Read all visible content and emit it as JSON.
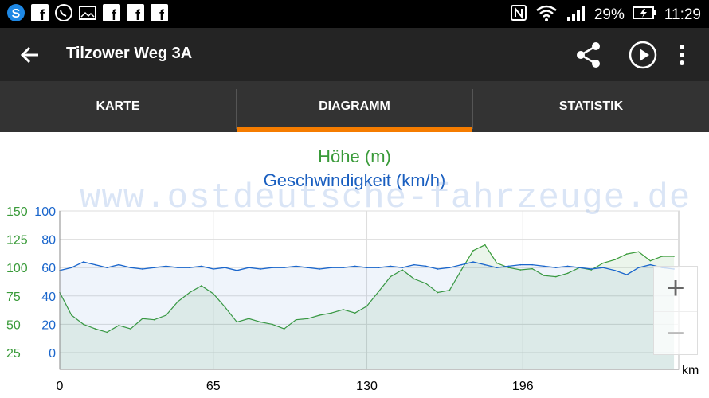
{
  "status_bar": {
    "battery": "29%",
    "time": "11:29",
    "left_icons": [
      "s-app-icon",
      "facebook-icon",
      "whatsapp-icon",
      "image-icon",
      "facebook-icon",
      "facebook-icon",
      "facebook-icon"
    ],
    "right_icons": [
      "nfc-icon",
      "wifi-icon",
      "signal-icon",
      "battery-charging-icon"
    ]
  },
  "app_bar": {
    "title": "Tilzower Weg 3A"
  },
  "tabs": [
    {
      "label": "KARTE",
      "active": false
    },
    {
      "label": "DIAGRAMM",
      "active": true
    },
    {
      "label": "STATISTIK",
      "active": false
    }
  ],
  "accent_color": "#f57c00",
  "chart": {
    "title_height": "Höhe (m)",
    "title_speed": "Geschwindigkeit (km/h)",
    "watermark": "www.ostdeutsche-fahrzeuge.de",
    "zoom_in": "+",
    "zoom_out": "−"
  },
  "chart_data": {
    "type": "line",
    "xlabel": "km",
    "x_ticks": [
      "0",
      "65",
      "130",
      "196"
    ],
    "xlim": [
      0,
      262
    ],
    "left_axis_green_ticks": [
      "150",
      "125",
      "100",
      "75",
      "50",
      "25"
    ],
    "left_axis_blue_ticks": [
      "100",
      "80",
      "60",
      "40",
      "20",
      "0"
    ],
    "ylim_height": [
      25,
      150
    ],
    "ylim_speed": [
      0,
      100
    ],
    "grid": true,
    "series": [
      {
        "name": "Höhe (m)",
        "axis": "height",
        "color": "#3a9b3a",
        "x": [
          0,
          5,
          10,
          15,
          20,
          25,
          30,
          35,
          40,
          45,
          50,
          55,
          60,
          65,
          70,
          75,
          80,
          85,
          90,
          95,
          100,
          105,
          110,
          115,
          120,
          125,
          130,
          135,
          140,
          145,
          150,
          155,
          160,
          165,
          170,
          175,
          180,
          185,
          190,
          195,
          200,
          205,
          210,
          215,
          220,
          225,
          230,
          235,
          240,
          245,
          250,
          255,
          260
        ],
        "values": [
          78,
          58,
          50,
          46,
          43,
          49,
          46,
          55,
          54,
          58,
          70,
          78,
          84,
          77,
          65,
          52,
          55,
          52,
          50,
          46,
          54,
          55,
          58,
          60,
          63,
          60,
          66,
          79,
          92,
          98,
          90,
          86,
          78,
          80,
          98,
          115,
          120,
          104,
          100,
          98,
          99,
          93,
          92,
          95,
          100,
          98,
          104,
          107,
          112,
          114,
          106,
          110,
          110
        ]
      },
      {
        "name": "Geschwindigkeit (km/h)",
        "axis": "speed",
        "color": "#1a66cc",
        "x": [
          0,
          5,
          10,
          15,
          20,
          25,
          30,
          35,
          40,
          45,
          50,
          55,
          60,
          65,
          70,
          75,
          80,
          85,
          90,
          95,
          100,
          105,
          110,
          115,
          120,
          125,
          130,
          135,
          140,
          145,
          150,
          155,
          160,
          165,
          170,
          175,
          180,
          185,
          190,
          195,
          200,
          205,
          210,
          215,
          220,
          225,
          230,
          235,
          240,
          245,
          250,
          255,
          260
        ],
        "values": [
          58,
          60,
          64,
          62,
          60,
          62,
          60,
          59,
          60,
          61,
          60,
          60,
          61,
          59,
          60,
          58,
          60,
          59,
          60,
          60,
          61,
          60,
          59,
          60,
          60,
          61,
          60,
          60,
          61,
          60,
          62,
          61,
          59,
          60,
          62,
          64,
          62,
          60,
          61,
          62,
          62,
          61,
          60,
          61,
          60,
          59,
          60,
          58,
          55,
          60,
          62,
          60,
          59
        ]
      }
    ]
  }
}
